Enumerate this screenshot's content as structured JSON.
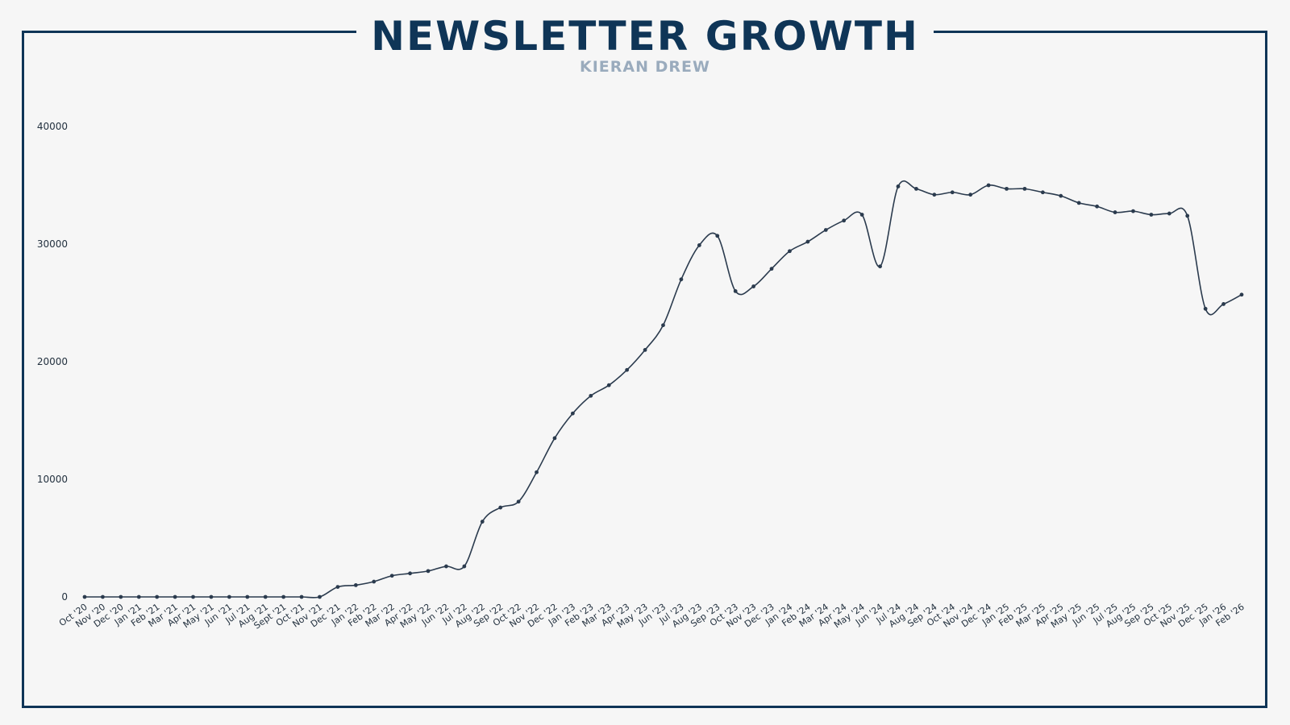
{
  "header": {
    "title": "NEWSLETTER GROWTH",
    "subtitle": "KIERAN DREW"
  },
  "colors": {
    "frame": "#0f3557",
    "title": "#0f3557",
    "subtitle": "#9aabbd",
    "line": "#2b3b4e",
    "background": "#f6f6f6"
  },
  "chart_data": {
    "type": "line",
    "title": "NEWSLETTER GROWTH",
    "subtitle": "KIERAN DREW",
    "xlabel": "",
    "ylabel": "",
    "ylim": [
      0,
      40000
    ],
    "yticks": [
      0,
      10000,
      20000,
      30000,
      40000
    ],
    "grid": false,
    "legend": "none",
    "categories": [
      "Oct '20",
      "Nov '20",
      "Dec '20",
      "Jan '21",
      "Feb '21",
      "Mar '21",
      "Apr '21",
      "May '21",
      "Jun '21",
      "Jul '21",
      "Aug '21",
      "Sept '21",
      "Oct '21",
      "Nov '21",
      "Dec '21",
      "Jan '22",
      "Feb '22",
      "Mar '22",
      "Apr '22",
      "May '22",
      "Jun '22",
      "Jul '22",
      "Aug '22",
      "Sep '22",
      "Oct '22",
      "Nov '22",
      "Dec '22",
      "Jan '23",
      "Feb '23",
      "Mar '23",
      "Apr '23",
      "May '23",
      "Jun '23",
      "Jul '23",
      "Aug '23",
      "Sep '23",
      "Oct '23",
      "Nov '23",
      "Dec '23",
      "Jan '24",
      "Feb '24",
      "Mar '24",
      "Apr '24",
      "May '24",
      "Jun '24",
      "Jul '24",
      "Aug '24",
      "Sep '24",
      "Oct '24",
      "Nov '24",
      "Dec '24",
      "Jan '25",
      "Feb '25",
      "Mar '25",
      "Apr '25",
      "May '25",
      "Jun '25",
      "Jul '25",
      "Aug '25",
      "Sep '25",
      "Oct '25",
      "Nov '25",
      "Dec '25",
      "Jan '26",
      "Feb '26"
    ],
    "series": [
      {
        "values": [
          0,
          0,
          0,
          0,
          0,
          0,
          0,
          0,
          0,
          0,
          0,
          0,
          0,
          0,
          850,
          1000,
          1300,
          1800,
          2000,
          2200,
          2600,
          2600,
          6400,
          7600,
          8100,
          10600,
          13500,
          15600,
          17100,
          18000,
          19300,
          21000,
          23100,
          27000,
          29900,
          30700,
          26000,
          26400,
          27900,
          29400,
          30200,
          31200,
          32000,
          32500,
          28100,
          34900,
          34700,
          34200,
          34400,
          34200,
          35000,
          34700,
          34700,
          34400,
          34100,
          33500,
          33200,
          32700,
          32800,
          32500,
          32600,
          32400,
          24500,
          24900,
          25700
        ]
      }
    ]
  }
}
